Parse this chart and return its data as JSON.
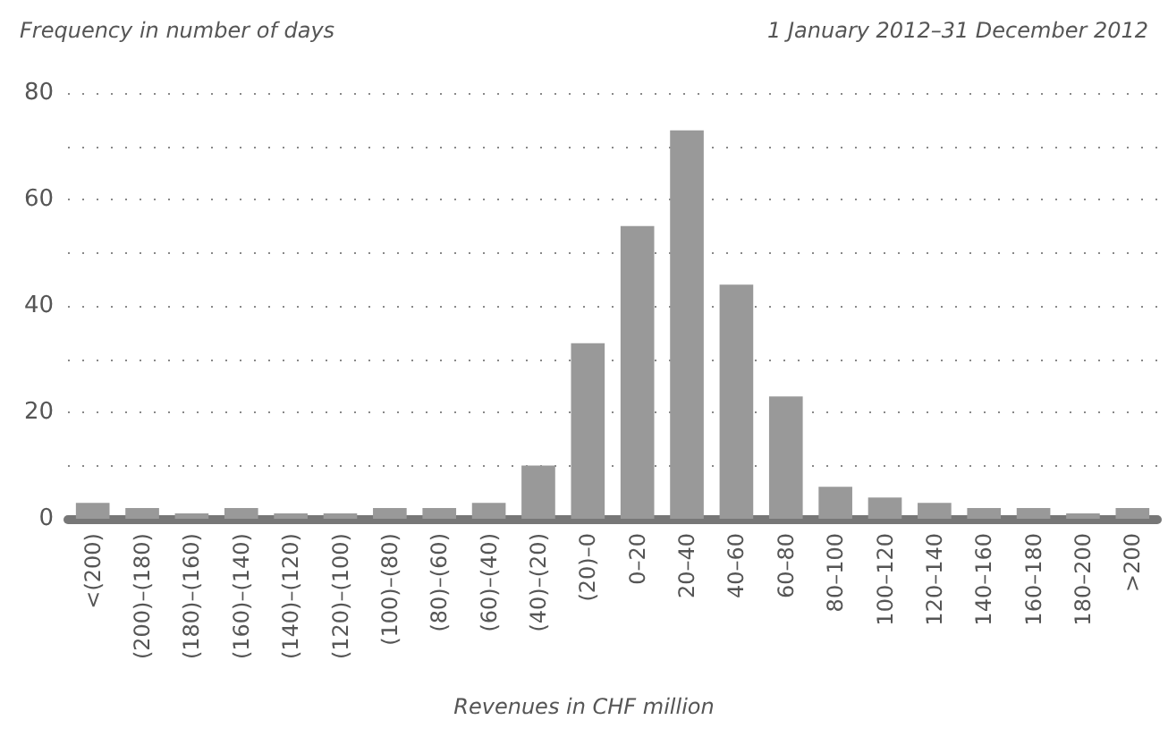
{
  "chart_data": {
    "type": "bar",
    "ylabel": "Frequency in number of days",
    "subtitle": "1 January 2012–31 December 2012",
    "xlabel": "Revenues in CHF million",
    "categories": [
      "<(200)",
      "(200)–(180)",
      "(180)–(160)",
      "(160)–(140)",
      "(140)–(120)",
      "(120)–(100)",
      "(100)–(80)",
      "(80)–(60)",
      "(60)–(40)",
      "(40)–(20)",
      "(20)–0",
      "0–20",
      "20–40",
      "40–60",
      "60–80",
      "80–100",
      "100–120",
      "120–140",
      "140–160",
      "160–180",
      "180–200",
      ">200"
    ],
    "values": [
      3,
      2,
      1,
      2,
      1,
      1,
      2,
      2,
      3,
      10,
      33,
      55,
      73,
      44,
      23,
      6,
      4,
      3,
      2,
      2,
      1,
      2
    ],
    "color": "#999999",
    "ylim": [
      0,
      80
    ],
    "yticks": [
      0,
      {
        "value": 10,
        "label": null
      },
      20,
      {
        "value": 30,
        "label": null
      },
      40,
      {
        "value": 50,
        "label": null
      },
      60,
      {
        "value": 70,
        "label": null
      },
      80
    ],
    "grid": "y"
  }
}
